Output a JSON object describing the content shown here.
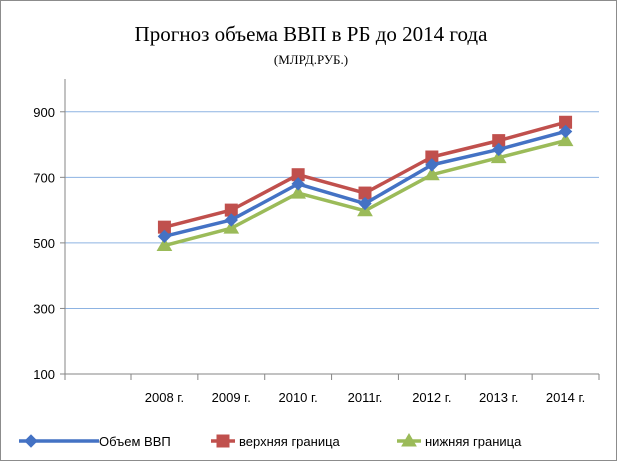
{
  "chart_data": {
    "type": "line",
    "title": "Прогноз объема ВВП в РБ до 2014 года",
    "subtitle": "(МЛРД.РУБ.)",
    "xlabel": "",
    "ylabel": "",
    "categories": [
      "2008 г.",
      "2009 г.",
      "2010 г.",
      "2011г.",
      "2012 г.",
      "2013 г.",
      "2014 г."
    ],
    "y_ticks": [
      "100",
      "300",
      "500",
      "700",
      "900"
    ],
    "ylim": [
      100,
      1000
    ],
    "grid": "horizontal",
    "legend": "bottom",
    "series": [
      {
        "name": "Объем ВВП",
        "color": "#4472c4",
        "marker": "diamond",
        "values": [
          520,
          570,
          680,
          620,
          738,
          785,
          840
        ]
      },
      {
        "name": "верхняя граница",
        "color": "#c0504d",
        "marker": "square",
        "values": [
          548,
          600,
          708,
          652,
          762,
          812,
          868
        ]
      },
      {
        "name": "нижняя граница",
        "color": "#9bbb59",
        "marker": "triangle",
        "values": [
          492,
          545,
          652,
          598,
          708,
          760,
          812
        ]
      }
    ]
  }
}
